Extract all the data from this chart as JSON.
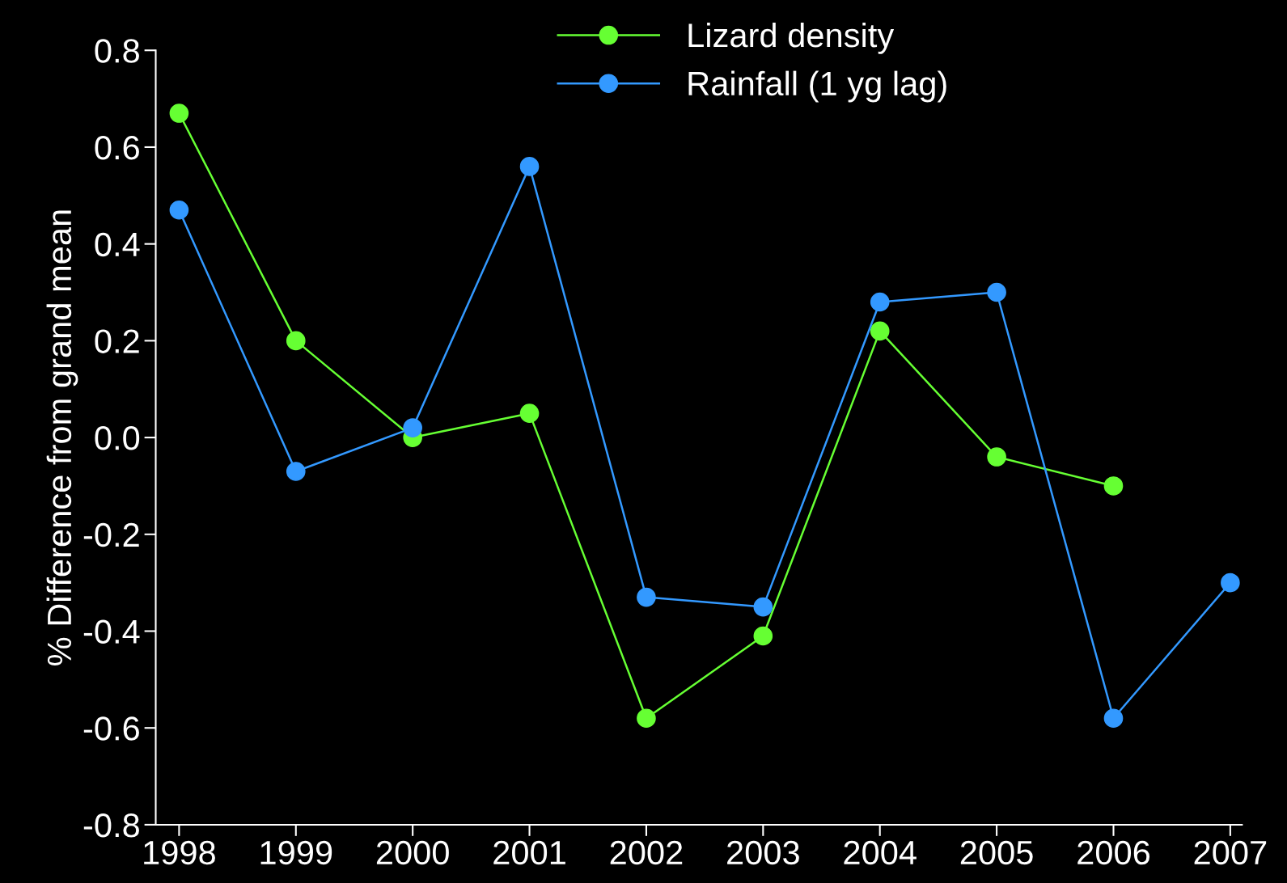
{
  "chart_data": {
    "type": "line",
    "ylabel": "% Difference from grand mean",
    "categories": [
      "1998",
      "1999",
      "2000",
      "2001",
      "2002",
      "2003",
      "2004",
      "2005",
      "2006",
      "2007"
    ],
    "series": [
      {
        "name": "Lizard density",
        "color": "#66ff33",
        "values": [
          0.67,
          0.2,
          0.0,
          0.05,
          -0.58,
          -0.41,
          0.22,
          -0.04,
          -0.1,
          null
        ]
      },
      {
        "name": "Rainfall (1 yg lag)",
        "color": "#3399ff",
        "values": [
          0.47,
          -0.07,
          0.02,
          0.56,
          -0.33,
          -0.35,
          0.28,
          0.3,
          -0.58,
          -0.3
        ]
      }
    ],
    "ylim": [
      -0.8,
      0.8
    ],
    "yticks": [
      {
        "value": -0.8,
        "label": "-0.8"
      },
      {
        "value": -0.6,
        "label": "-0.6"
      },
      {
        "value": -0.4,
        "label": "-0.4"
      },
      {
        "value": -0.2,
        "label": "-0.2"
      },
      {
        "value": 0.0,
        "label": "0.0"
      },
      {
        "value": 0.2,
        "label": "0.2"
      },
      {
        "value": 0.4,
        "label": "0.4"
      },
      {
        "value": 0.6,
        "label": "0.6"
      },
      {
        "value": 0.8,
        "label": "0.8"
      }
    ],
    "grid": false,
    "legend": "top",
    "marker": "circle",
    "line_style": "solid"
  }
}
